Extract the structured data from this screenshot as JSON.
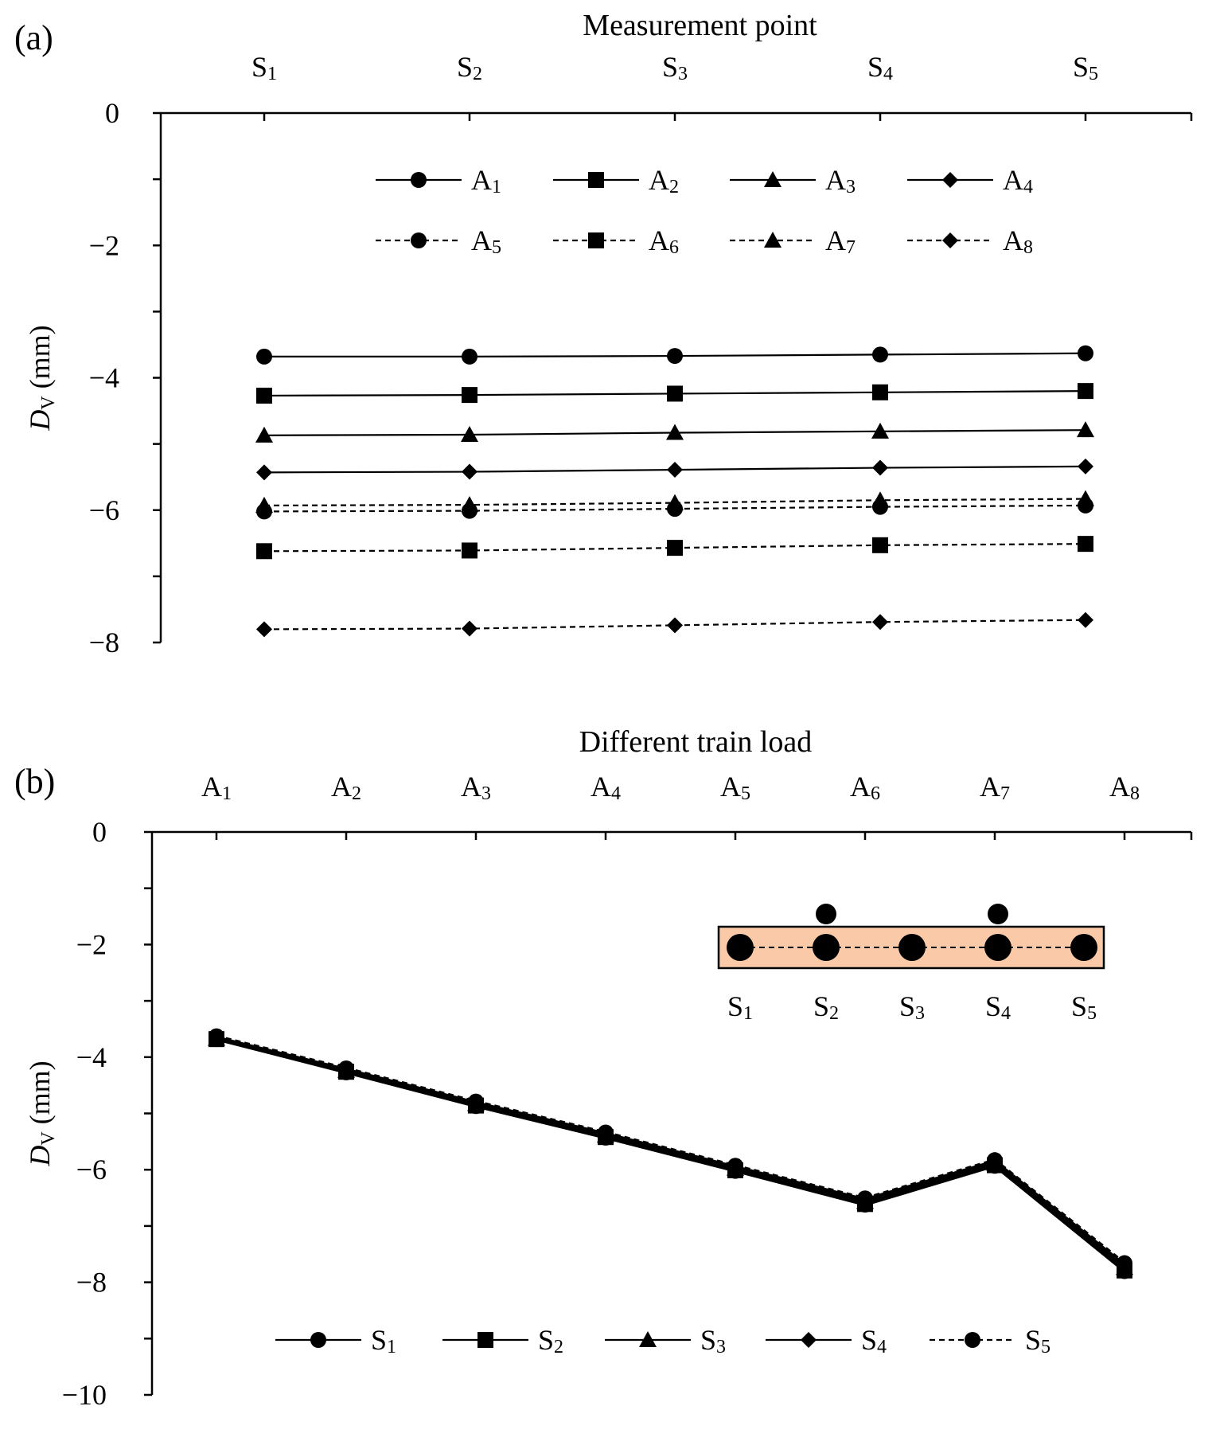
{
  "chart_data": [
    {
      "type": "line",
      "panel_label": "(a)",
      "title": "",
      "xlabel": "Measurement point",
      "ylabel": {
        "main": "D",
        "sub": "V",
        "unit": "(mm)"
      },
      "categories": [
        {
          "main": "S",
          "sub": "1"
        },
        {
          "main": "S",
          "sub": "2"
        },
        {
          "main": "S",
          "sub": "3"
        },
        {
          "main": "S",
          "sub": "4"
        },
        {
          "main": "S",
          "sub": "5"
        }
      ],
      "ylim": [
        -8,
        0
      ],
      "yticks": [
        0,
        -2,
        -4,
        -6,
        -8
      ],
      "ytick_labels": [
        "0",
        "−2",
        "−4",
        "−6",
        "−8"
      ],
      "grid": false,
      "legend_position": "top",
      "series": [
        {
          "name": {
            "main": "A",
            "sub": "1"
          },
          "marker": "circle",
          "dash": false,
          "values": [
            -3.68,
            -3.68,
            -3.67,
            -3.65,
            -3.63
          ]
        },
        {
          "name": {
            "main": "A",
            "sub": "2"
          },
          "marker": "square",
          "dash": false,
          "values": [
            -4.27,
            -4.26,
            -4.24,
            -4.22,
            -4.2
          ]
        },
        {
          "name": {
            "main": "A",
            "sub": "3"
          },
          "marker": "triangle",
          "dash": false,
          "values": [
            -4.87,
            -4.86,
            -4.83,
            -4.81,
            -4.79
          ]
        },
        {
          "name": {
            "main": "A",
            "sub": "4"
          },
          "marker": "diamond",
          "dash": false,
          "values": [
            -5.43,
            -5.42,
            -5.39,
            -5.36,
            -5.34
          ]
        },
        {
          "name": {
            "main": "A",
            "sub": "5"
          },
          "marker": "circle",
          "dash": true,
          "values": [
            -6.02,
            -6.01,
            -5.98,
            -5.95,
            -5.93
          ]
        },
        {
          "name": {
            "main": "A",
            "sub": "6"
          },
          "marker": "square",
          "dash": true,
          "values": [
            -6.62,
            -6.61,
            -6.57,
            -6.53,
            -6.51
          ]
        },
        {
          "name": {
            "main": "A",
            "sub": "7"
          },
          "marker": "triangle",
          "dash": true,
          "values": [
            -5.93,
            -5.92,
            -5.89,
            -5.85,
            -5.83
          ]
        },
        {
          "name": {
            "main": "A",
            "sub": "8"
          },
          "marker": "diamond",
          "dash": true,
          "values": [
            -7.8,
            -7.79,
            -7.74,
            -7.69,
            -7.66
          ]
        }
      ]
    },
    {
      "type": "line",
      "panel_label": "(b)",
      "title": "",
      "xlabel": "Different train load",
      "ylabel": {
        "main": "D",
        "sub": "V",
        "unit": "(mm)"
      },
      "categories": [
        {
          "main": "A",
          "sub": "1"
        },
        {
          "main": "A",
          "sub": "2"
        },
        {
          "main": "A",
          "sub": "3"
        },
        {
          "main": "A",
          "sub": "4"
        },
        {
          "main": "A",
          "sub": "5"
        },
        {
          "main": "A",
          "sub": "6"
        },
        {
          "main": "A",
          "sub": "7"
        },
        {
          "main": "A",
          "sub": "8"
        }
      ],
      "ylim": [
        -10,
        0
      ],
      "yticks": [
        0,
        -2,
        -4,
        -6,
        -8,
        -10
      ],
      "ytick_labels": [
        "0",
        "−2",
        "−4",
        "−6",
        "−8",
        "−10"
      ],
      "grid": false,
      "legend_position": "bottom",
      "series": [
        {
          "name": {
            "main": "S",
            "sub": "1"
          },
          "marker": "circle",
          "dash": false,
          "values": [
            -3.68,
            -4.27,
            -4.87,
            -5.43,
            -6.02,
            -6.62,
            -5.93,
            -7.8
          ]
        },
        {
          "name": {
            "main": "S",
            "sub": "2"
          },
          "marker": "square",
          "dash": false,
          "values": [
            -3.68,
            -4.26,
            -4.86,
            -5.42,
            -6.01,
            -6.61,
            -5.92,
            -7.79
          ]
        },
        {
          "name": {
            "main": "S",
            "sub": "3"
          },
          "marker": "triangle",
          "dash": false,
          "values": [
            -3.67,
            -4.24,
            -4.83,
            -5.39,
            -5.98,
            -6.57,
            -5.89,
            -7.74
          ]
        },
        {
          "name": {
            "main": "S",
            "sub": "4"
          },
          "marker": "diamond",
          "dash": false,
          "values": [
            -3.65,
            -4.22,
            -4.81,
            -5.36,
            -5.95,
            -6.53,
            -5.85,
            -7.69
          ]
        },
        {
          "name": {
            "main": "S",
            "sub": "5"
          },
          "marker": "circle",
          "dash": true,
          "values": [
            -3.63,
            -4.2,
            -4.79,
            -5.34,
            -5.93,
            -6.51,
            -5.83,
            -7.66
          ]
        }
      ],
      "inset": {
        "fill_color": "#f9c9a8",
        "points": [
          {
            "main": "S",
            "sub": "1"
          },
          {
            "main": "S",
            "sub": "2"
          },
          {
            "main": "S",
            "sub": "3"
          },
          {
            "main": "S",
            "sub": "4"
          },
          {
            "main": "S",
            "sub": "5"
          }
        ]
      }
    }
  ],
  "colors": {
    "line": "#000000",
    "inset_fill": "#f9c9a8"
  }
}
